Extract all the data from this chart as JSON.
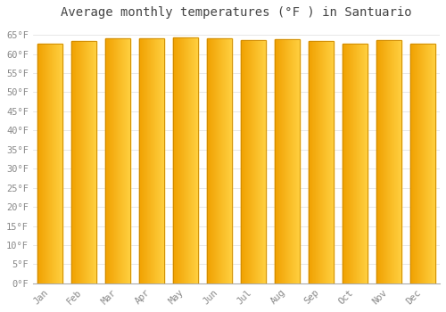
{
  "title": "Average monthly temperatures (°F ) in Santuario",
  "months": [
    "Jan",
    "Feb",
    "Mar",
    "Apr",
    "May",
    "Jun",
    "Jul",
    "Aug",
    "Sep",
    "Oct",
    "Nov",
    "Dec"
  ],
  "values": [
    62.6,
    63.3,
    64.1,
    64.2,
    64.4,
    64.0,
    63.7,
    63.8,
    63.5,
    62.8,
    63.7,
    62.6
  ],
  "bar_color_left": "#F0A000",
  "bar_color_right": "#FFD040",
  "bar_edge_color": "#CC8800",
  "background_color": "#FFFFFF",
  "grid_color": "#DDDDDD",
  "ylim": [
    0,
    68
  ],
  "yticks": [
    0,
    5,
    10,
    15,
    20,
    25,
    30,
    35,
    40,
    45,
    50,
    55,
    60,
    65
  ],
  "ytick_labels": [
    "0°F",
    "5°F",
    "10°F",
    "15°F",
    "20°F",
    "25°F",
    "30°F",
    "35°F",
    "40°F",
    "45°F",
    "50°F",
    "55°F",
    "60°F",
    "65°F"
  ],
  "title_fontsize": 10,
  "tick_fontsize": 7.5,
  "title_color": "#444444",
  "tick_color": "#888888",
  "font_family": "monospace"
}
